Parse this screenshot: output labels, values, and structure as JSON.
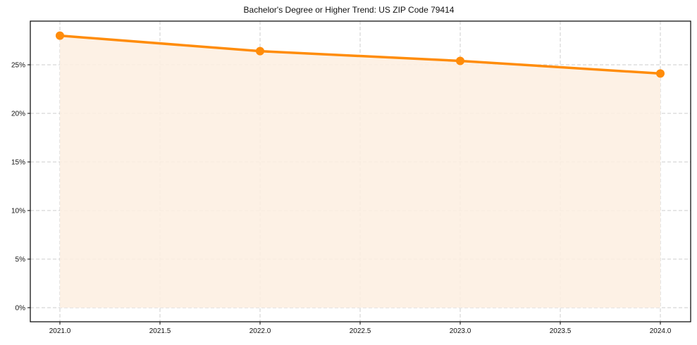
{
  "chart_data": {
    "type": "line",
    "title": "Bachelor's Degree or Higher Trend: US ZIP Code 79414",
    "xlabel": "",
    "ylabel": "",
    "x": [
      2021,
      2022,
      2023,
      2024
    ],
    "series": [
      {
        "name": "Bachelor's Degree or Higher",
        "values": [
          28.0,
          26.4,
          25.4,
          24.1
        ],
        "color": "#ff8c0a",
        "fill": "#fdf0e2",
        "marker": "circle"
      }
    ],
    "x_ticks": [
      "2021.0",
      "2021.5",
      "2022.0",
      "2022.5",
      "2023.0",
      "2023.5",
      "2024.0"
    ],
    "y_ticks": [
      "0%",
      "5%",
      "10%",
      "15%",
      "20%",
      "25%"
    ],
    "xlim": [
      2020.85,
      2024.15
    ],
    "ylim": [
      -1.4,
      29.4
    ],
    "grid": true,
    "grid_style": "dashed",
    "legend": false,
    "area_fill": true
  }
}
